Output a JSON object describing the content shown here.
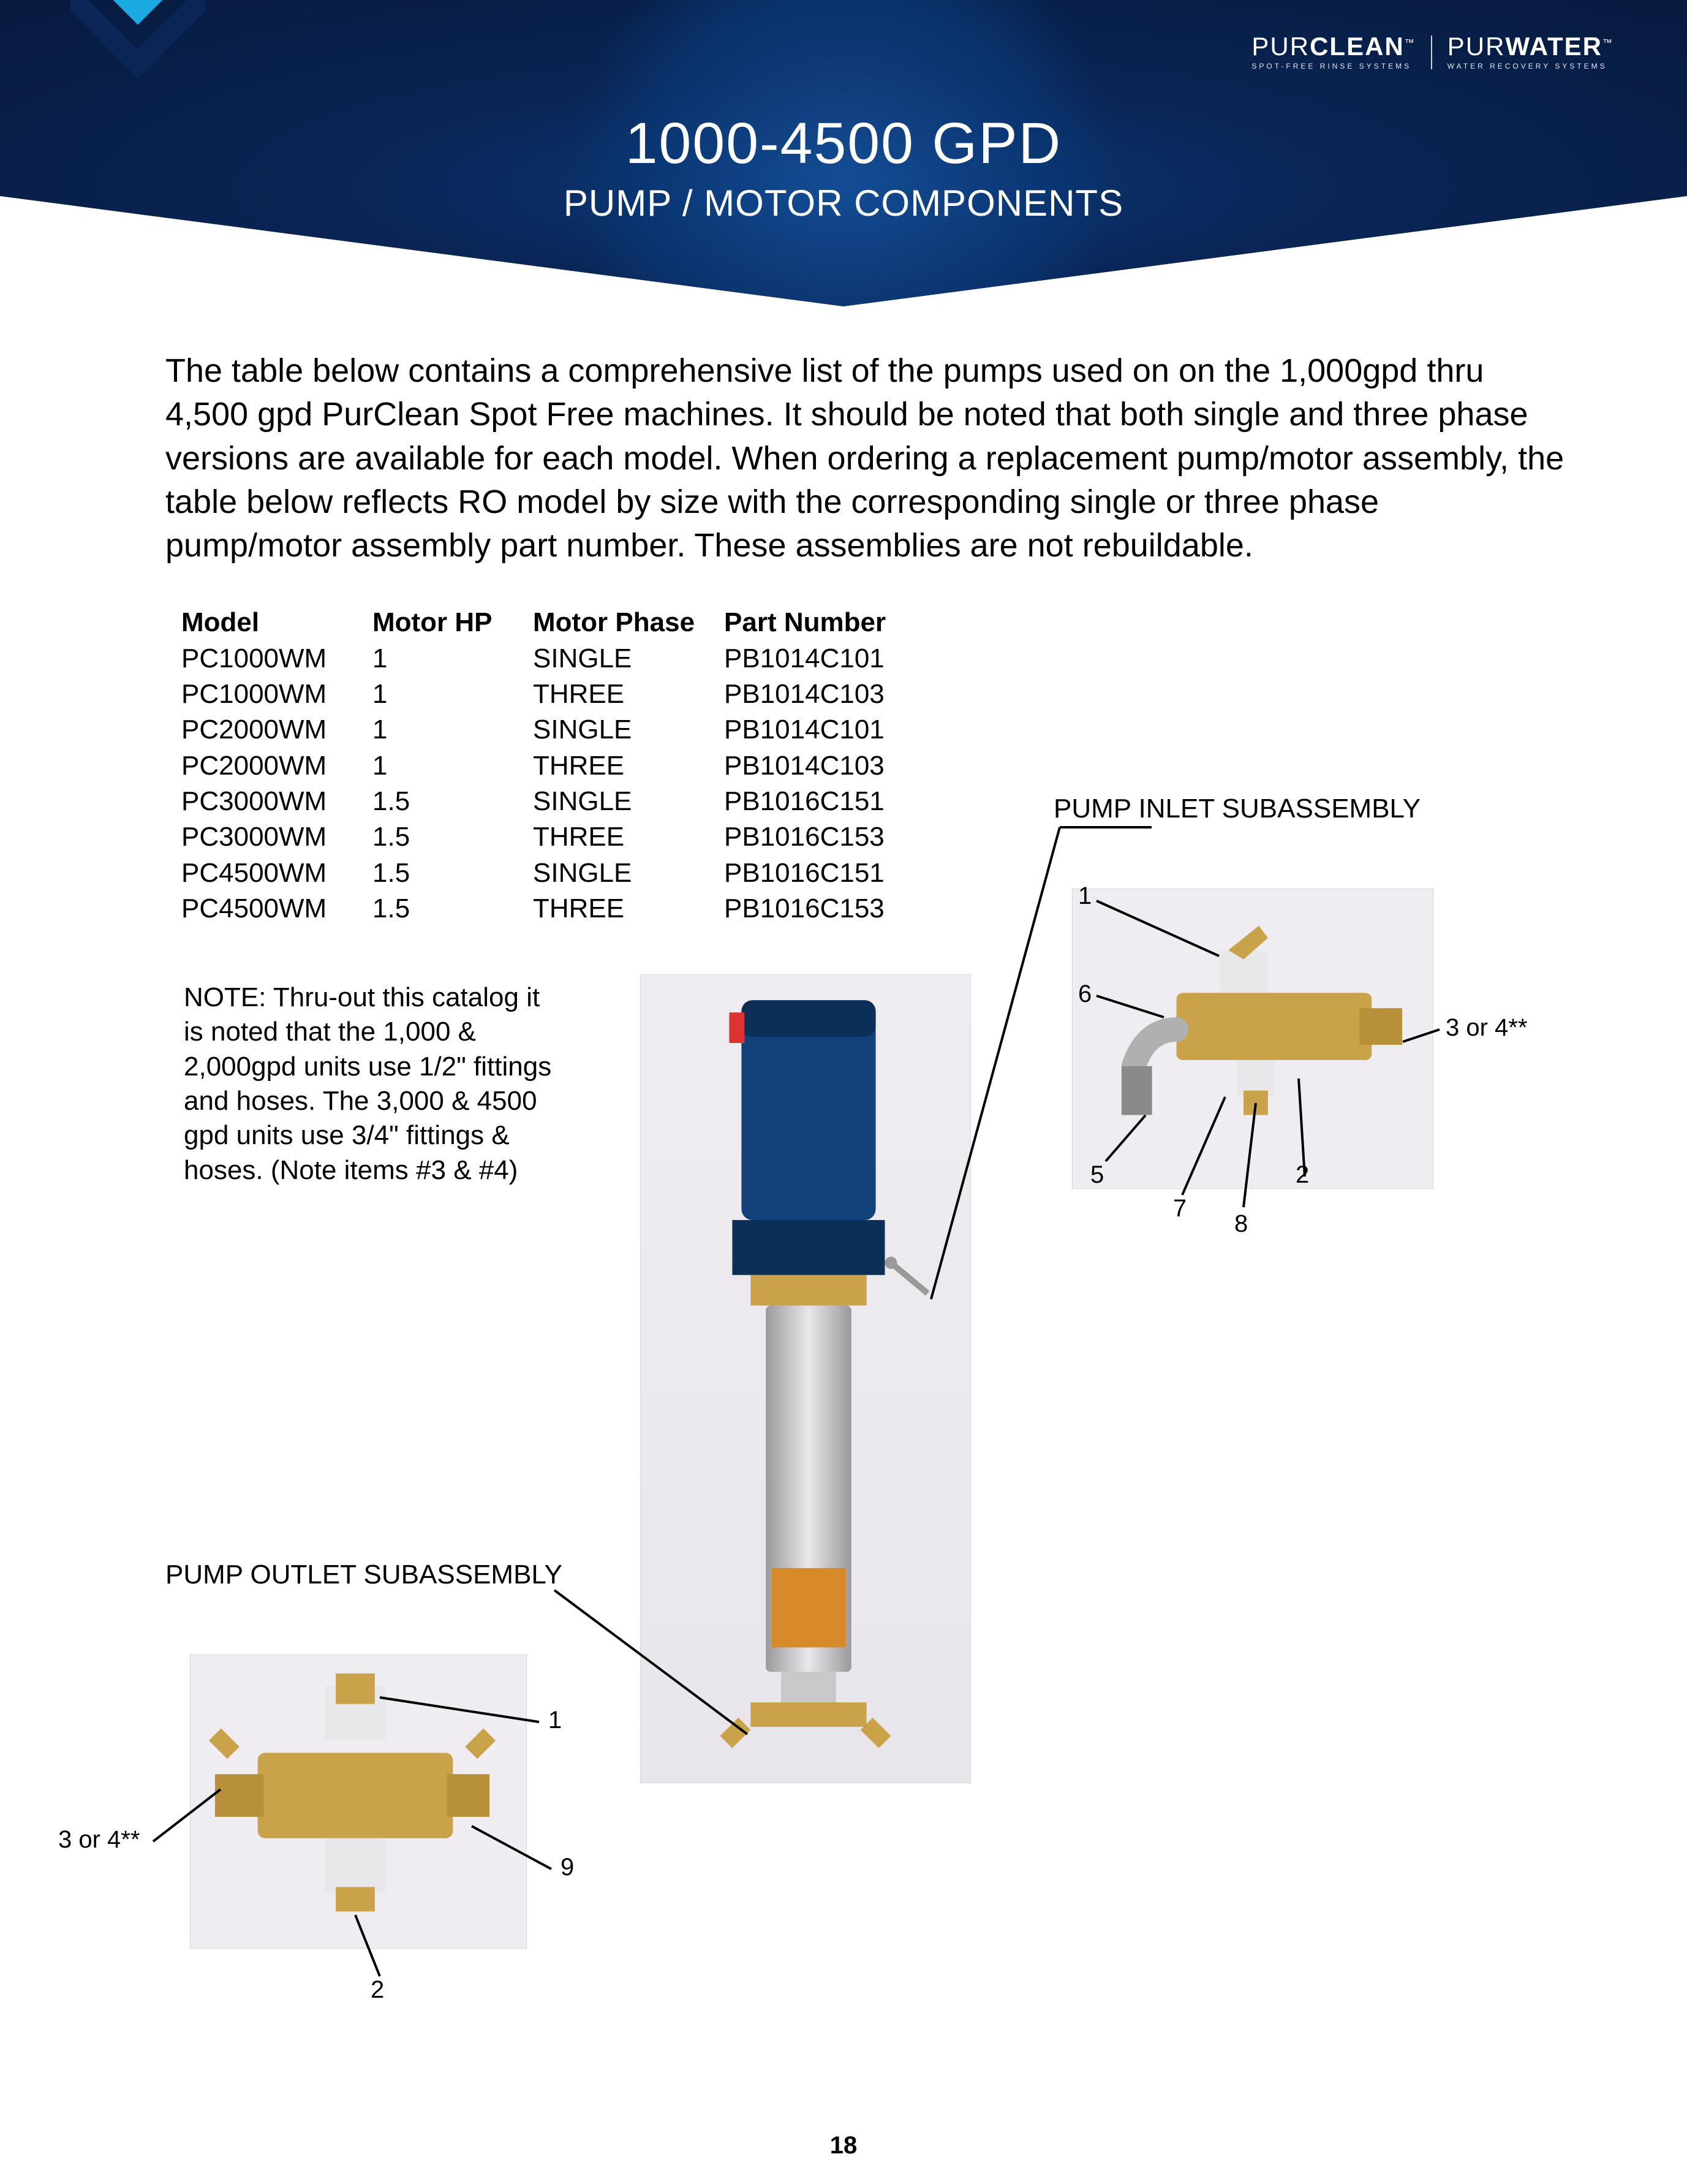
{
  "brand": {
    "left_main": "PURCLEAN",
    "left_sub": "SPOT-FREE RINSE SYSTEMS",
    "right_main": "PURWATER",
    "right_sub": "WATER RECOVERY SYSTEMS",
    "trademark": "™"
  },
  "header": {
    "title": "1000-4500 GPD",
    "subtitle": "PUMP / MOTOR COMPONENTS"
  },
  "intro": "The table below contains a comprehensive list of the pumps used on on the 1,000gpd thru 4,500 gpd PurClean Spot Free machines. It should be noted that both single and three phase versions are available for each model. When ordering a replacement pump/motor assembly, the table below reflects RO model by size with the corresponding single or three phase pump/motor assembly part number. These assemblies are not rebuildable.",
  "table": {
    "columns": [
      "Model",
      "Motor HP",
      "Motor Phase",
      "Part Number"
    ],
    "rows": [
      [
        "PC1000WM",
        "1",
        "SINGLE",
        "PB1014C101"
      ],
      [
        "PC1000WM",
        "1",
        "THREE",
        "PB1014C103"
      ],
      [
        "PC2000WM",
        "1",
        "SINGLE",
        "PB1014C101"
      ],
      [
        "PC2000WM",
        "1",
        "THREE",
        "PB1014C103"
      ],
      [
        "PC3000WM",
        "1.5",
        "SINGLE",
        "PB1016C151"
      ],
      [
        "PC3000WM",
        "1.5",
        "THREE",
        "PB1016C153"
      ],
      [
        "PC4500WM",
        "1.5",
        "SINGLE",
        "PB1016C151"
      ],
      [
        "PC4500WM",
        "1.5",
        "THREE",
        "PB1016C153"
      ]
    ]
  },
  "note": "NOTE: Thru-out this catalog it is noted that the 1,000 & 2,000gpd units use 1/2\" fittings and hoses. The 3,000 & 4500 gpd units use 3/4\" fittings & hoses. (Note items #3 & #4)",
  "labels": {
    "inlet": "PUMP INLET SUBASSEMBLY",
    "outlet": "PUMP OUTLET SUBASSEMBLY"
  },
  "callouts": {
    "inlet": {
      "c1": "1",
      "c6": "6",
      "c5": "5",
      "c7": "7",
      "c8": "8",
      "c2": "2",
      "c34": "3 or 4**"
    },
    "outlet": {
      "c1": "1",
      "c9": "9",
      "c2": "2",
      "c34": "3 or 4**"
    }
  },
  "page_number": "18",
  "colors": {
    "header_bg_dark": "#061a3d",
    "header_bg_light": "#0a3a7a",
    "chevron_cyan": "#1aa9e0",
    "chevron_blue": "#0a2556",
    "brass": "#caa24a",
    "motor_blue": "#13417a",
    "steel": "#c9c9cc"
  }
}
